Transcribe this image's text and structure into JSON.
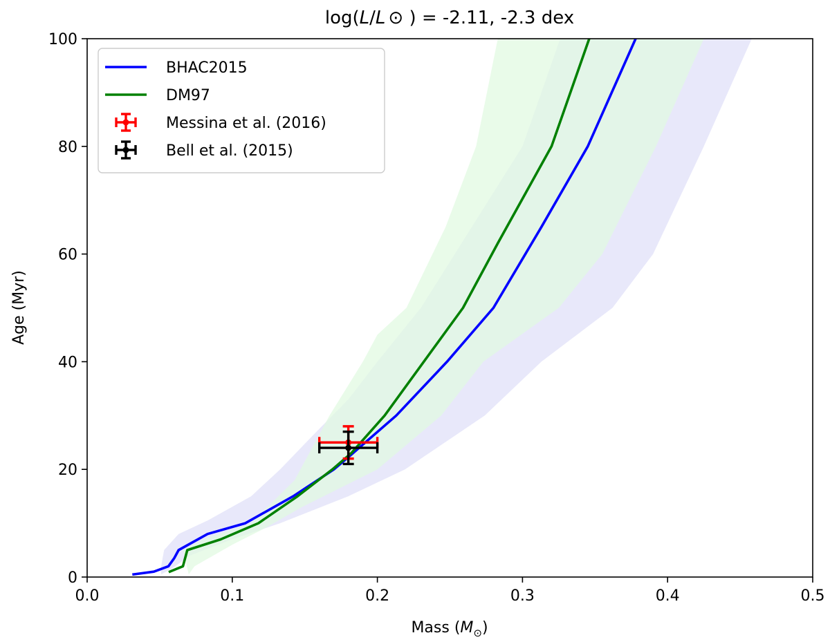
{
  "chart_data": {
    "type": "line",
    "title": "log(L/L⊙) = -2.11, -2.3 dex",
    "title_prefix": "log(",
    "title_italic_l1": "L",
    "title_slash": "/",
    "title_italic_l2": "L",
    "title_sun": "⊙",
    "title_suffix": " ) = -2.11, -2.3 dex",
    "xlabel": "Mass (M⊙)",
    "xlabel_prefix": "Mass (",
    "xlabel_italic": "M",
    "xlabel_sub": "⊙",
    "xlabel_suffix": ")",
    "ylabel": "Age (Myr)",
    "xlim": [
      0.0,
      0.5
    ],
    "ylim": [
      0,
      100
    ],
    "xticks": [
      0.0,
      0.1,
      0.2,
      0.3,
      0.4,
      0.5
    ],
    "xtick_labels": [
      "0.0",
      "0.1",
      "0.2",
      "0.3",
      "0.4",
      "0.5"
    ],
    "yticks": [
      0,
      20,
      40,
      60,
      80,
      100
    ],
    "ytick_labels": [
      "0",
      "20",
      "40",
      "60",
      "80",
      "100"
    ],
    "grid": false,
    "legend_position": "top-left",
    "bands": [
      {
        "name": "BHAC2015 range",
        "color": "#e6e6fa",
        "opacity": 0.9,
        "upper": [
          [
            0.051,
            2
          ],
          [
            0.053,
            5
          ],
          [
            0.063,
            8
          ],
          [
            0.083,
            10.5
          ],
          [
            0.113,
            15
          ],
          [
            0.133,
            20
          ],
          [
            0.158,
            27
          ],
          [
            0.18,
            33
          ],
          [
            0.2,
            40
          ],
          [
            0.23,
            50
          ],
          [
            0.265,
            65
          ],
          [
            0.3,
            80
          ],
          [
            0.326,
            100
          ]
        ],
        "lower": [
          [
            0.458,
            100
          ],
          [
            0.425,
            80
          ],
          [
            0.39,
            60
          ],
          [
            0.362,
            50
          ],
          [
            0.313,
            40
          ],
          [
            0.274,
            30
          ],
          [
            0.219,
            20
          ],
          [
            0.18,
            15
          ],
          [
            0.133,
            10
          ],
          [
            0.1,
            7
          ],
          [
            0.071,
            4
          ],
          [
            0.058,
            1.5
          ],
          [
            0.051,
            0.5
          ]
        ]
      },
      {
        "name": "DM97 range",
        "color": "#e2fae2",
        "opacity": 0.75,
        "upper": [
          [
            0.066,
            5
          ],
          [
            0.08,
            7
          ],
          [
            0.113,
            10
          ],
          [
            0.143,
            18
          ],
          [
            0.167,
            30
          ],
          [
            0.19,
            40
          ],
          [
            0.2,
            45
          ],
          [
            0.22,
            50
          ],
          [
            0.247,
            65
          ],
          [
            0.268,
            80
          ],
          [
            0.283,
            100
          ]
        ],
        "lower": [
          [
            0.425,
            100
          ],
          [
            0.392,
            80
          ],
          [
            0.355,
            60
          ],
          [
            0.325,
            50
          ],
          [
            0.273,
            40
          ],
          [
            0.244,
            30
          ],
          [
            0.2,
            20
          ],
          [
            0.148,
            13
          ],
          [
            0.122,
            9
          ],
          [
            0.1,
            6
          ],
          [
            0.074,
            2
          ],
          [
            0.07,
            0.5
          ]
        ]
      }
    ],
    "series": [
      {
        "name": "BHAC2015",
        "color": "#0000ff",
        "points": [
          [
            0.032,
            0.5
          ],
          [
            0.046,
            1.0
          ],
          [
            0.056,
            2.0
          ],
          [
            0.06,
            3.5
          ],
          [
            0.063,
            5.0
          ],
          [
            0.083,
            8.0
          ],
          [
            0.109,
            10.0
          ],
          [
            0.142,
            15.0
          ],
          [
            0.17,
            20.0
          ],
          [
            0.181,
            22.5
          ],
          [
            0.213,
            30.0
          ],
          [
            0.248,
            40.0
          ],
          [
            0.28,
            50.0
          ],
          [
            0.313,
            65.0
          ],
          [
            0.345,
            80.0
          ],
          [
            0.378,
            100.0
          ]
        ]
      },
      {
        "name": "DM97",
        "color": "#008000",
        "points": [
          [
            0.057,
            1.0
          ],
          [
            0.066,
            2.0
          ],
          [
            0.069,
            5.0
          ],
          [
            0.092,
            7.0
          ],
          [
            0.118,
            10.0
          ],
          [
            0.145,
            15.0
          ],
          [
            0.169,
            20.0
          ],
          [
            0.182,
            23.0
          ],
          [
            0.205,
            30.0
          ],
          [
            0.232,
            40.0
          ],
          [
            0.259,
            50.0
          ],
          [
            0.283,
            62.0
          ],
          [
            0.32,
            80.0
          ],
          [
            0.346,
            100.0
          ]
        ]
      }
    ],
    "errorbars": [
      {
        "name": "Messina et al. (2016)",
        "color": "#ff0000",
        "x": 0.18,
        "y": 25,
        "xerr": [
          0.02,
          0.02
        ],
        "yerr": [
          3,
          3
        ]
      },
      {
        "name": "Bell et al. (2015)",
        "color": "#000000",
        "x": 0.18,
        "y": 24,
        "xerr": [
          0.02,
          0.02
        ],
        "yerr": [
          3,
          3
        ]
      }
    ]
  }
}
